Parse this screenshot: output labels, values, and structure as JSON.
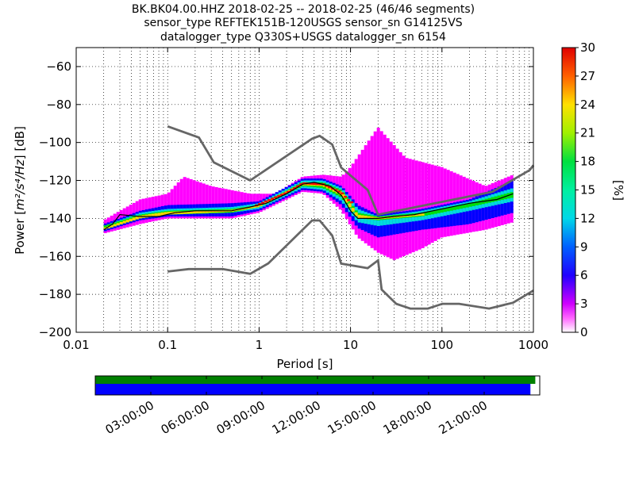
{
  "chart_data": {
    "type": "heatmap",
    "title_lines": [
      "BK.BK04.00.HHZ   2018-02-25 -- 2018-02-25  (46/46 segments)",
      "sensor_type REFTEK151B-120USGS sensor_sn G14125VS",
      "datalogger_type Q330S+USGS datalogger_sn 6154"
    ],
    "xlabel": "Period [s]",
    "ylabel_prefix": "Power [",
    "ylabel_unit": "m²/s⁴/Hz",
    "ylabel_suffix": "] [dB]",
    "x_scale": "log",
    "xlim": [
      0.01,
      1000
    ],
    "ylim": [
      -200,
      -50
    ],
    "x_ticks": [
      {
        "value": 0.01,
        "label": "0.01"
      },
      {
        "value": 0.1,
        "label": "0.1"
      },
      {
        "value": 1,
        "label": "1"
      },
      {
        "value": 10,
        "label": "10"
      },
      {
        "value": 100,
        "label": "100"
      },
      {
        "value": 1000,
        "label": "1000"
      }
    ],
    "y_ticks": [
      {
        "value": -200,
        "label": "−200"
      },
      {
        "value": -180,
        "label": "−180"
      },
      {
        "value": -160,
        "label": "−160"
      },
      {
        "value": -140,
        "label": "−140"
      },
      {
        "value": -120,
        "label": "−120"
      },
      {
        "value": -100,
        "label": "−100"
      },
      {
        "value": -80,
        "label": "−80"
      },
      {
        "value": -60,
        "label": "−60"
      }
    ],
    "grid": "dotted",
    "colorbar": {
      "label": "[%]",
      "range": [
        0,
        30
      ],
      "ticks": [
        "0",
        "3",
        "6",
        "9",
        "12",
        "15",
        "18",
        "21",
        "24",
        "27",
        "30"
      ]
    },
    "noise_models": [
      {
        "name": "high",
        "points": [
          [
            0.1,
            -91.5
          ],
          [
            0.22,
            -97.4
          ],
          [
            0.32,
            -110.5
          ],
          [
            0.8,
            -120
          ],
          [
            3.8,
            -98
          ],
          [
            4.6,
            -96.5
          ],
          [
            6.3,
            -101
          ],
          [
            7.9,
            -113.2
          ],
          [
            15.4,
            -125
          ],
          [
            20,
            -138
          ],
          [
            354.8,
            -126
          ],
          [
            912,
            -114.5
          ],
          [
            1000,
            -112
          ]
        ]
      },
      {
        "name": "low",
        "points": [
          [
            0.1,
            -168
          ],
          [
            0.17,
            -166.7
          ],
          [
            0.4,
            -166.7
          ],
          [
            0.8,
            -169.2
          ],
          [
            1.26,
            -163.7
          ],
          [
            3.8,
            -141.1
          ],
          [
            4.6,
            -141.1
          ],
          [
            6.3,
            -149
          ],
          [
            7.9,
            -163.8
          ],
          [
            15.4,
            -166.2
          ],
          [
            20,
            -162.1
          ],
          [
            21.9,
            -177.5
          ],
          [
            31.6,
            -185
          ],
          [
            45,
            -187.5
          ],
          [
            70,
            -187.5
          ],
          [
            101,
            -185
          ],
          [
            154,
            -185
          ],
          [
            328,
            -187.5
          ],
          [
            600,
            -184.4
          ],
          [
            1000,
            -178
          ]
        ]
      }
    ],
    "median": {
      "points": [
        [
          0.02,
          -146
        ],
        [
          0.025,
          -143
        ],
        [
          0.03,
          -138
        ],
        [
          0.05,
          -139
        ],
        [
          0.08,
          -139
        ],
        [
          0.12,
          -137
        ],
        [
          0.2,
          -136
        ],
        [
          0.5,
          -136
        ],
        [
          0.8,
          -134
        ],
        [
          1.2,
          -132
        ],
        [
          2,
          -127
        ],
        [
          3,
          -122
        ],
        [
          4,
          -121
        ],
        [
          6,
          -123
        ],
        [
          8,
          -128
        ],
        [
          10,
          -136
        ],
        [
          12,
          -140
        ],
        [
          20,
          -140
        ],
        [
          30,
          -139
        ],
        [
          50,
          -138
        ],
        [
          100,
          -135
        ],
        [
          200,
          -132
        ],
        [
          400,
          -130
        ],
        [
          600,
          -127
        ]
      ]
    },
    "psd_bands": [
      {
        "color": "#ff00ff",
        "min": [
          [
            0.02,
            -148
          ],
          [
            0.05,
            -143
          ],
          [
            0.1,
            -140
          ],
          [
            0.5,
            -140
          ],
          [
            1,
            -137
          ],
          [
            3,
            -126
          ],
          [
            5,
            -127
          ],
          [
            8,
            -136
          ],
          [
            12,
            -150
          ],
          [
            20,
            -158
          ],
          [
            30,
            -162
          ],
          [
            60,
            -156
          ],
          [
            100,
            -150
          ],
          [
            300,
            -146
          ],
          [
            600,
            -142
          ]
        ],
        "max": [
          [
            0.02,
            -141
          ],
          [
            0.03,
            -136
          ],
          [
            0.05,
            -130
          ],
          [
            0.1,
            -127
          ],
          [
            0.15,
            -118
          ],
          [
            0.3,
            -123
          ],
          [
            0.8,
            -127
          ],
          [
            1.5,
            -127
          ],
          [
            3,
            -118
          ],
          [
            5,
            -117
          ],
          [
            8,
            -118
          ],
          [
            10,
            -113
          ],
          [
            20,
            -92
          ],
          [
            40,
            -108
          ],
          [
            100,
            -113
          ],
          [
            300,
            -123
          ],
          [
            600,
            -117
          ]
        ]
      },
      {
        "color": "#0000ff",
        "min": [
          [
            0.02,
            -147
          ],
          [
            0.05,
            -141
          ],
          [
            0.1,
            -139
          ],
          [
            0.5,
            -139
          ],
          [
            1,
            -136
          ],
          [
            3,
            -125
          ],
          [
            5,
            -126
          ],
          [
            8,
            -133
          ],
          [
            12,
            -145
          ],
          [
            20,
            -150
          ],
          [
            60,
            -146
          ],
          [
            200,
            -143
          ],
          [
            600,
            -137
          ]
        ],
        "max": [
          [
            0.02,
            -143
          ],
          [
            0.05,
            -136
          ],
          [
            0.1,
            -133
          ],
          [
            0.5,
            -132
          ],
          [
            1,
            -131
          ],
          [
            3,
            -119
          ],
          [
            5,
            -119
          ],
          [
            8,
            -123
          ],
          [
            12,
            -133
          ],
          [
            20,
            -138
          ],
          [
            60,
            -135
          ],
          [
            200,
            -130
          ],
          [
            600,
            -120
          ]
        ]
      },
      {
        "color": "#00dcdc",
        "min": [
          [
            0.02,
            -146
          ],
          [
            0.05,
            -140
          ],
          [
            0.1,
            -138
          ],
          [
            0.5,
            -137
          ],
          [
            1,
            -135
          ],
          [
            3,
            -124
          ],
          [
            5,
            -125
          ],
          [
            8,
            -131
          ],
          [
            12,
            -142
          ],
          [
            20,
            -144
          ],
          [
            60,
            -141
          ],
          [
            200,
            -136
          ],
          [
            600,
            -131
          ]
        ],
        "max": [
          [
            0.02,
            -144
          ],
          [
            0.05,
            -137
          ],
          [
            0.1,
            -135
          ],
          [
            0.5,
            -134
          ],
          [
            1,
            -132
          ],
          [
            3,
            -120
          ],
          [
            5,
            -120
          ],
          [
            8,
            -124
          ],
          [
            12,
            -135
          ],
          [
            20,
            -139
          ],
          [
            60,
            -136
          ],
          [
            200,
            -131
          ],
          [
            600,
            -124
          ]
        ]
      },
      {
        "color": "#00e000",
        "min": [
          [
            0.02,
            -146
          ],
          [
            0.05,
            -140
          ],
          [
            0.1,
            -138
          ],
          [
            0.5,
            -137
          ],
          [
            1,
            -134
          ],
          [
            3,
            -123
          ],
          [
            5,
            -124
          ],
          [
            8,
            -129
          ],
          [
            12,
            -140
          ],
          [
            20,
            -141
          ],
          [
            60,
            -139
          ],
          [
            200,
            -134
          ],
          [
            600,
            -129
          ]
        ],
        "max": [
          [
            0.02,
            -144
          ],
          [
            0.05,
            -138
          ],
          [
            0.1,
            -136
          ],
          [
            0.5,
            -135
          ],
          [
            1,
            -133
          ],
          [
            3,
            -121
          ],
          [
            5,
            -121
          ],
          [
            8,
            -125
          ],
          [
            12,
            -137
          ],
          [
            20,
            -139
          ],
          [
            60,
            -137
          ],
          [
            200,
            -132
          ],
          [
            600,
            -126
          ]
        ]
      },
      {
        "color": "#ffd400",
        "min": [
          [
            0.02,
            -146
          ],
          [
            0.05,
            -140
          ],
          [
            0.1,
            -138
          ],
          [
            0.5,
            -136.5
          ],
          [
            1,
            -134
          ],
          [
            3,
            -122.5
          ],
          [
            5,
            -123
          ],
          [
            8,
            -128
          ],
          [
            12,
            -140
          ],
          [
            20,
            -140.5
          ],
          [
            60,
            -138.5
          ]
        ],
        "max": [
          [
            0.02,
            -145
          ],
          [
            0.05,
            -138.5
          ],
          [
            0.1,
            -136.5
          ],
          [
            0.5,
            -135.5
          ],
          [
            1,
            -133
          ],
          [
            3,
            -121.5
          ],
          [
            5,
            -122
          ],
          [
            8,
            -126
          ],
          [
            12,
            -138
          ],
          [
            20,
            -139.5
          ],
          [
            60,
            -137.5
          ]
        ]
      },
      {
        "color": "#ff0000",
        "min": [
          [
            0.9,
            -134
          ],
          [
            2,
            -127
          ],
          [
            3,
            -122
          ],
          [
            5,
            -122.5
          ],
          [
            8,
            -127
          ],
          [
            10,
            -132
          ]
        ],
        "max": [
          [
            0.9,
            -133
          ],
          [
            2,
            -126
          ],
          [
            3,
            -121
          ],
          [
            5,
            -121.5
          ],
          [
            8,
            -126
          ],
          [
            10,
            -131
          ]
        ]
      }
    ],
    "time_axis": {
      "labels": [
        "03:00:00",
        "06:00:00",
        "09:00:00",
        "12:00:00",
        "15:00:00",
        "18:00:00",
        "21:00:00"
      ],
      "hours": [
        3,
        6,
        9,
        12,
        15,
        18,
        21
      ],
      "range_hours": [
        0,
        24
      ],
      "data_coverage_fraction": 0.99,
      "psd_coverage_fraction": 0.979,
      "data_color": "#008000",
      "psd_color": "#0000ff"
    }
  }
}
